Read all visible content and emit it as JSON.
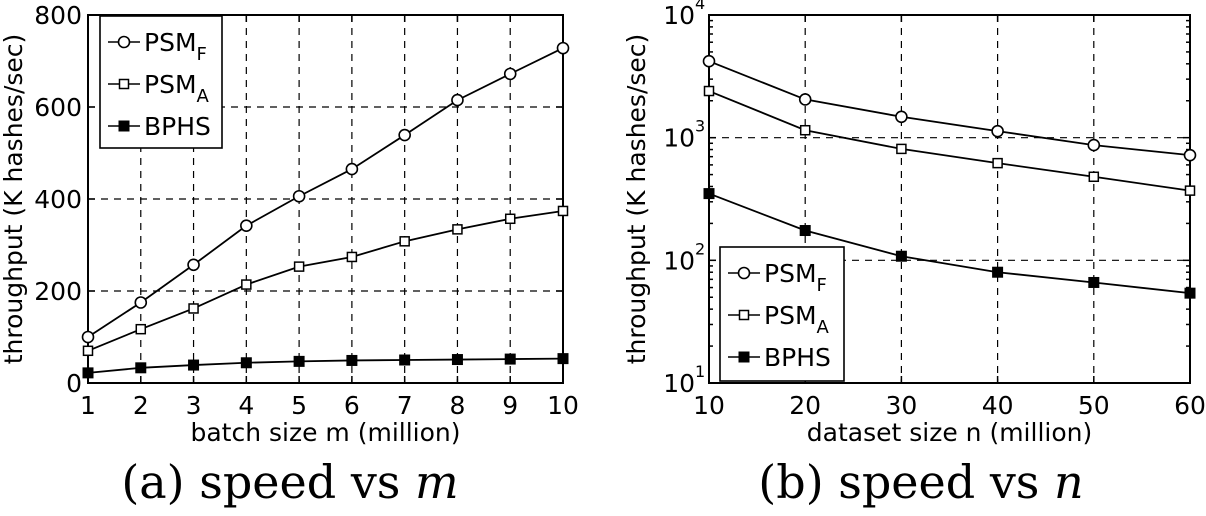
{
  "chart_data": [
    {
      "type": "line",
      "caption_prefix": "(a) speed vs ",
      "caption_var": "m",
      "xlabel": "batch size m (million)",
      "ylabel": "throughput (K hashes/sec)",
      "x": [
        1,
        2,
        3,
        4,
        5,
        6,
        7,
        8,
        9,
        10
      ],
      "xticks": [
        "1",
        "2",
        "3",
        "4",
        "5",
        "6",
        "7",
        "8",
        "9",
        "10"
      ],
      "yticks": [
        "0",
        "200",
        "400",
        "600",
        "800"
      ],
      "xlim": [
        1,
        10
      ],
      "ylim": [
        0,
        800
      ],
      "yscale": "linear",
      "grid": true,
      "legend_position": "top-left",
      "series": [
        {
          "name": "PSM",
          "sub": "F",
          "marker": "circle",
          "values": [
            100,
            175,
            257,
            342,
            406,
            465,
            539,
            615,
            672,
            728
          ]
        },
        {
          "name": "PSM",
          "sub": "A",
          "marker": "square-open",
          "values": [
            70,
            117,
            162,
            214,
            253,
            274,
            308,
            334,
            357,
            374
          ]
        },
        {
          "name": "BPHS",
          "sub": "",
          "marker": "square-filled",
          "values": [
            22,
            33,
            39,
            44,
            47,
            49,
            50,
            51,
            52,
            53
          ]
        }
      ]
    },
    {
      "type": "line",
      "caption_prefix": "(b) speed vs ",
      "caption_var": "n",
      "xlabel": "dataset size n (million)",
      "ylabel": "throughput (K hashes/sec)",
      "x": [
        10,
        20,
        30,
        40,
        50,
        60
      ],
      "xticks": [
        "10",
        "20",
        "30",
        "40",
        "50",
        "60"
      ],
      "yticks": [
        {
          "base": "10",
          "exp": "1"
        },
        {
          "base": "10",
          "exp": "2"
        },
        {
          "base": "10",
          "exp": "3"
        },
        {
          "base": "10",
          "exp": "4"
        }
      ],
      "xlim": [
        10,
        60
      ],
      "ylim": [
        10,
        10000
      ],
      "yscale": "log",
      "grid": true,
      "legend_position": "bottom-left",
      "series": [
        {
          "name": "PSM",
          "sub": "F",
          "marker": "circle",
          "values": [
            4200,
            2050,
            1480,
            1130,
            870,
            720
          ]
        },
        {
          "name": "PSM",
          "sub": "A",
          "marker": "square-open",
          "values": [
            2400,
            1150,
            810,
            620,
            480,
            370
          ]
        },
        {
          "name": "BPHS",
          "sub": "",
          "marker": "square-filled",
          "values": [
            350,
            175,
            108,
            80,
            66,
            54
          ]
        }
      ]
    }
  ]
}
